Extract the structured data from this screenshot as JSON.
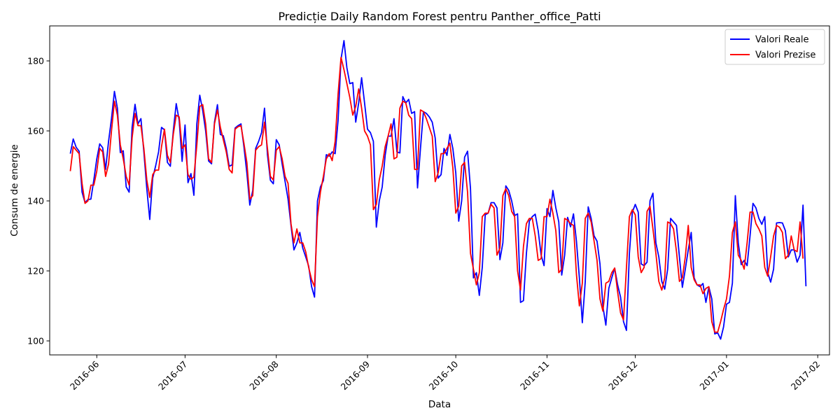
{
  "chart_data": {
    "type": "line",
    "title": "Predicție Daily Random Forest pentru Panther_office_Patti",
    "xlabel": "Data",
    "ylabel": "Consum de energie",
    "xlim": [
      "2016-05-16",
      "2017-02-05"
    ],
    "ylim": [
      96,
      190
    ],
    "y_ticks": [
      100,
      120,
      140,
      160,
      180
    ],
    "x_ticks": [
      "2016-06",
      "2016-07",
      "2016-08",
      "2016-09",
      "2016-10",
      "2016-11",
      "2016-12",
      "2017-01",
      "2017-02"
    ],
    "x_tick_dates": [
      "2016-06-01",
      "2016-07-01",
      "2016-08-01",
      "2016-09-01",
      "2016-10-01",
      "2016-11-01",
      "2016-12-01",
      "2017-01-01",
      "2017-02-01"
    ],
    "grid": false,
    "legend_position": "top-right",
    "start_date": "2016-05-23",
    "frequency": "daily",
    "series": [
      {
        "name": "Valori Reale",
        "color": "#0000ff",
        "values": [
          153.5,
          157.7,
          155.3,
          154.2,
          142.5,
          139.5,
          140.4,
          140.5,
          146,
          152,
          156.3,
          155.2,
          149,
          157,
          163.5,
          171.3,
          166.5,
          153.8,
          154.3,
          144,
          142.5,
          161,
          167.6,
          162,
          163.5,
          154,
          143.5,
          134.7,
          146.5,
          150,
          154,
          161,
          160.3,
          151,
          149.9,
          160,
          167.8,
          163,
          151.3,
          161.7,
          145.2,
          147.8,
          141.6,
          162,
          170.2,
          165.8,
          160,
          151.4,
          150.6,
          162.5,
          167.5,
          159,
          158.6,
          155,
          149.9,
          150.3,
          160.8,
          161.5,
          162,
          155.5,
          148,
          138.8,
          143,
          155,
          157,
          159.5,
          166.5,
          153.2,
          145.9,
          144.9,
          157.5,
          156,
          150.5,
          145.5,
          140.5,
          133,
          126,
          128,
          131,
          126.5,
          124,
          121.4,
          115.5,
          112.5,
          140,
          144,
          145.8,
          153.2,
          152.8,
          154,
          153.5,
          163,
          180.5,
          185.8,
          178,
          173.5,
          173.8,
          162.5,
          168,
          175.2,
          168,
          160.5,
          159.5,
          157,
          132.5,
          140,
          144,
          153,
          158.5,
          158.5,
          163.5,
          154,
          153.7,
          169.8,
          168,
          169,
          165,
          165.5,
          143.7,
          155,
          165.5,
          165,
          164,
          162.5,
          158,
          146.5,
          147.5,
          155,
          153,
          159,
          155,
          148,
          134.2,
          140,
          152.5,
          154.2,
          143.5,
          118,
          119.5,
          113,
          121,
          136,
          136.5,
          139.5,
          139.5,
          138,
          123.2,
          128,
          144.3,
          143,
          140,
          135.8,
          136.3,
          111,
          111.5,
          125,
          134.2,
          135.5,
          136.2,
          131.5,
          124.5,
          121.5,
          137.8,
          135.5,
          143,
          138,
          134,
          118.8,
          124.5,
          135.3,
          132.6,
          136.3,
          128.5,
          118,
          105.2,
          117,
          138.3,
          135,
          130,
          128.5,
          122,
          109.8,
          104.5,
          115,
          118,
          120.8,
          116,
          112.5,
          105.5,
          103,
          125,
          136.8,
          139,
          136.8,
          122,
          121.5,
          122.5,
          140,
          142.2,
          128,
          124,
          117,
          114.8,
          120.5,
          135,
          134,
          133,
          124,
          115.3,
          120.5,
          126,
          131,
          118,
          116,
          115.5,
          116.4,
          111,
          115.4,
          112,
          102,
          102.3,
          100.5,
          104,
          110.5,
          111,
          116.5,
          141.5,
          128,
          121.8,
          123,
          121.5,
          130,
          139.3,
          138,
          135,
          133.3,
          135.5,
          119.5,
          116.8,
          120.5,
          133.7,
          133.8,
          133.7,
          131.5,
          124,
          126,
          126,
          122.5,
          124.5,
          138.8,
          115.6
        ]
      },
      {
        "name": "Valori Prezise",
        "color": "#ff0000",
        "values": [
          148.5,
          155.5,
          154.5,
          153.5,
          145,
          139.3,
          140,
          144.5,
          144.5,
          148.5,
          155,
          154,
          147,
          150.5,
          160,
          168.5,
          164.5,
          156,
          152,
          147,
          144.5,
          158,
          165,
          161.5,
          161.5,
          155,
          146,
          141,
          147.5,
          148.8,
          148.8,
          155.5,
          160.5,
          153,
          151,
          159,
          164.5,
          164,
          155,
          156,
          147.5,
          146.2,
          146.8,
          156,
          167,
          167.5,
          162,
          152,
          151,
          162,
          166,
          161,
          157.5,
          154,
          149,
          148,
          160.5,
          161.2,
          161.5,
          156.5,
          151,
          140.5,
          141.5,
          154.5,
          155.5,
          156,
          162.5,
          155,
          147,
          146,
          154.5,
          155.5,
          152,
          147,
          145,
          133.5,
          128,
          132,
          128,
          128,
          125.5,
          121,
          117.5,
          115.5,
          135.5,
          142.5,
          147,
          152,
          153.5,
          151.5,
          157,
          170.5,
          181,
          177.5,
          173.5,
          169.5,
          164.5,
          167,
          172,
          166.5,
          160,
          158.5,
          156,
          137.5,
          139,
          146,
          150,
          155.5,
          158.5,
          162,
          152,
          152.5,
          166.5,
          168.5,
          168,
          164.5,
          163.5,
          149,
          149,
          166,
          165.5,
          163.5,
          161,
          158.5,
          145.5,
          148,
          153.5,
          153.5,
          155,
          156.5,
          149.5,
          136.5,
          138.5,
          150,
          151,
          142.5,
          125,
          120.5,
          116,
          119.5,
          135.5,
          136.5,
          136.5,
          139,
          138,
          124.5,
          126.5,
          141.5,
          143.5,
          141.5,
          137,
          135.5,
          120,
          114.5,
          127,
          133.5,
          135,
          135,
          130,
          123,
          123.5,
          135.5,
          135.5,
          140.5,
          136.5,
          131.5,
          119.5,
          120.5,
          135,
          134.5,
          133.5,
          133,
          119,
          110,
          116.5,
          135,
          136.5,
          134,
          128.5,
          123,
          112,
          108.5,
          116.5,
          117,
          119.5,
          120.8,
          114,
          108,
          106,
          121,
          135.5,
          137.5,
          136,
          124,
          119.5,
          121,
          137,
          138.5,
          132,
          125,
          117,
          114.5,
          118,
          134,
          133.5,
          132,
          125.5,
          117,
          118,
          124,
          133,
          121,
          117.5,
          116,
          116,
          113.5,
          115,
          115.5,
          105.5,
          102.5,
          102.5,
          105.5,
          109,
          112,
          118.5,
          131,
          134,
          124.5,
          123,
          120.5,
          128,
          136.8,
          136.8,
          133.5,
          132,
          130,
          121,
          118.5,
          124,
          130,
          133,
          132.5,
          131,
          123.5,
          124.5,
          130,
          126,
          125.5,
          134,
          123.5
        ]
      }
    ]
  }
}
